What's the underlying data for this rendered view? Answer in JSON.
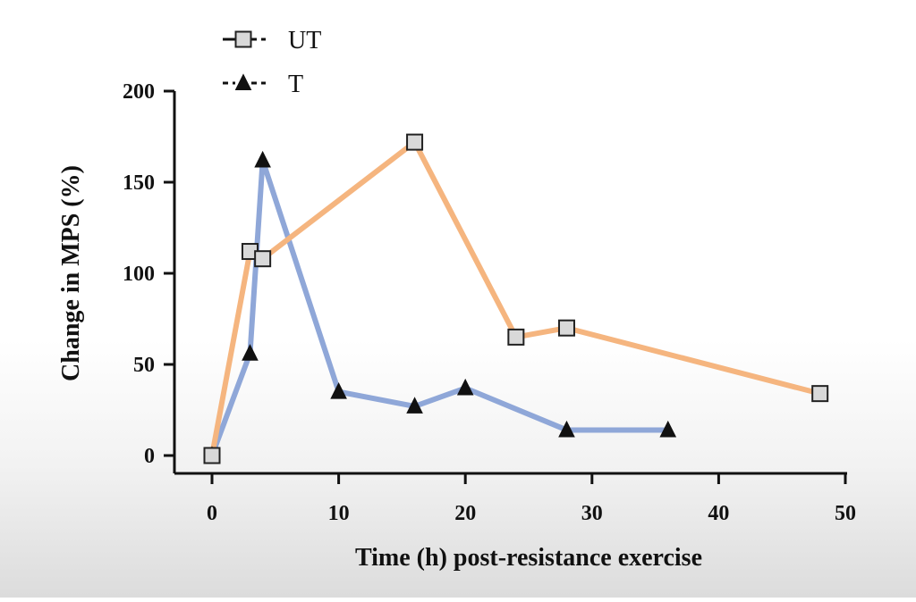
{
  "chart_data": {
    "type": "line",
    "title": "",
    "xlabel": "Time (h) post-resistance exercise",
    "ylabel": "Change in MPS (%)",
    "xlim": [
      -2,
      50
    ],
    "ylim": [
      0,
      200
    ],
    "xticks": [
      0,
      10,
      20,
      30,
      40,
      50
    ],
    "yticks": [
      0,
      50,
      100,
      150,
      200
    ],
    "grid": false,
    "legend_position": "top-left",
    "series": [
      {
        "name": "UT",
        "marker": "square",
        "line_color": "#f5b57f",
        "marker_fill": "#d9d9d9",
        "x": [
          0,
          3,
          4,
          16,
          24,
          28,
          48
        ],
        "y": [
          0,
          112,
          108,
          172,
          65,
          70,
          34
        ]
      },
      {
        "name": "T",
        "marker": "triangle",
        "line_color": "#8fa7d8",
        "marker_fill": "#111111",
        "x": [
          0,
          3,
          4,
          10,
          16,
          20,
          28,
          36
        ],
        "y": [
          0,
          56,
          162,
          35,
          27,
          37,
          14,
          14
        ]
      }
    ]
  }
}
